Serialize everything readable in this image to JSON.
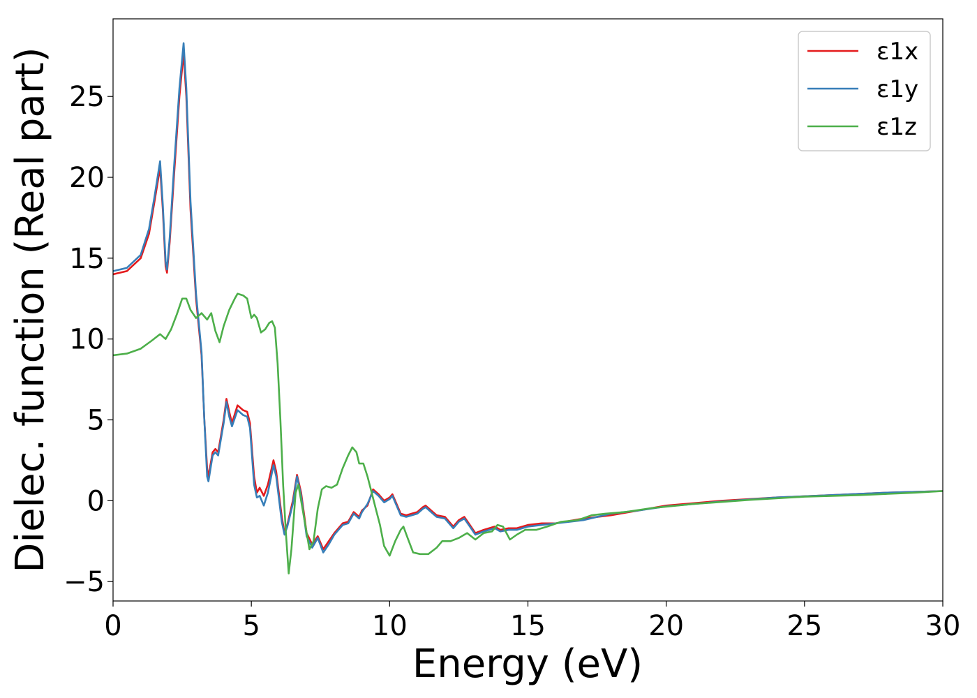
{
  "chart_data": {
    "type": "line",
    "title": "",
    "xlabel": "Energy (eV)",
    "ylabel": "Dielec. function (Real part)",
    "xlim": [
      0,
      30
    ],
    "ylim": [
      -6.2,
      29.8
    ],
    "x_ticks": [
      0,
      5,
      10,
      15,
      20,
      25,
      30
    ],
    "y_ticks": [
      -5,
      0,
      5,
      10,
      15,
      20,
      25
    ],
    "x_tick_labels": [
      "0",
      "5",
      "10",
      "15",
      "20",
      "25",
      "30"
    ],
    "y_tick_labels": [
      "−5",
      "0",
      "5",
      "10",
      "15",
      "20",
      "25"
    ],
    "grid": false,
    "legend": {
      "position": "top-right"
    },
    "series": [
      {
        "name": "ε1x",
        "color": "#e41a1c",
        "points": [
          [
            0,
            14.0
          ],
          [
            0.5,
            14.2
          ],
          [
            1.0,
            15.0
          ],
          [
            1.3,
            16.5
          ],
          [
            1.5,
            18.5
          ],
          [
            1.7,
            20.6
          ],
          [
            1.8,
            18.0
          ],
          [
            1.9,
            14.5
          ],
          [
            1.95,
            14.1
          ],
          [
            2.05,
            16.0
          ],
          [
            2.2,
            20.0
          ],
          [
            2.4,
            25.0
          ],
          [
            2.55,
            27.7
          ],
          [
            2.65,
            25.0
          ],
          [
            2.8,
            18.0
          ],
          [
            3.0,
            12.5
          ],
          [
            3.2,
            9.0
          ],
          [
            3.3,
            5.0
          ],
          [
            3.4,
            2.0
          ],
          [
            3.45,
            1.5
          ],
          [
            3.6,
            3.0
          ],
          [
            3.7,
            3.2
          ],
          [
            3.8,
            3.0
          ],
          [
            4.0,
            5.0
          ],
          [
            4.1,
            6.3
          ],
          [
            4.2,
            5.5
          ],
          [
            4.3,
            4.8
          ],
          [
            4.5,
            5.9
          ],
          [
            4.7,
            5.6
          ],
          [
            4.85,
            5.5
          ],
          [
            4.95,
            4.8
          ],
          [
            5.1,
            1.5
          ],
          [
            5.2,
            0.5
          ],
          [
            5.3,
            0.8
          ],
          [
            5.45,
            0.3
          ],
          [
            5.6,
            1.0
          ],
          [
            5.8,
            2.5
          ],
          [
            5.9,
            1.8
          ],
          [
            6.1,
            -1.0
          ],
          [
            6.2,
            -2.0
          ],
          [
            6.3,
            -1.5
          ],
          [
            6.5,
            0.0
          ],
          [
            6.65,
            1.6
          ],
          [
            6.8,
            0.5
          ],
          [
            7.0,
            -2.0
          ],
          [
            7.2,
            -2.7
          ],
          [
            7.4,
            -2.2
          ],
          [
            7.6,
            -3.0
          ],
          [
            7.8,
            -2.5
          ],
          [
            8.0,
            -2.0
          ],
          [
            8.3,
            -1.4
          ],
          [
            8.5,
            -1.3
          ],
          [
            8.7,
            -0.7
          ],
          [
            8.9,
            -1.0
          ],
          [
            9.0,
            -0.6
          ],
          [
            9.2,
            -0.3
          ],
          [
            9.4,
            0.7
          ],
          [
            9.6,
            0.4
          ],
          [
            9.8,
            0.0
          ],
          [
            10.0,
            0.2
          ],
          [
            10.1,
            0.4
          ],
          [
            10.2,
            0.0
          ],
          [
            10.4,
            -0.8
          ],
          [
            10.6,
            -0.9
          ],
          [
            10.8,
            -0.8
          ],
          [
            11.0,
            -0.7
          ],
          [
            11.2,
            -0.4
          ],
          [
            11.3,
            -0.3
          ],
          [
            11.5,
            -0.6
          ],
          [
            11.7,
            -0.9
          ],
          [
            12.0,
            -1.0
          ],
          [
            12.3,
            -1.6
          ],
          [
            12.5,
            -1.2
          ],
          [
            12.7,
            -1.0
          ],
          [
            12.9,
            -1.5
          ],
          [
            13.1,
            -2.0
          ],
          [
            13.4,
            -1.8
          ],
          [
            13.6,
            -1.7
          ],
          [
            13.8,
            -1.6
          ],
          [
            14.0,
            -1.8
          ],
          [
            14.3,
            -1.7
          ],
          [
            14.6,
            -1.7
          ],
          [
            15.0,
            -1.5
          ],
          [
            15.5,
            -1.4
          ],
          [
            16.0,
            -1.4
          ],
          [
            17.0,
            -1.1
          ],
          [
            18.0,
            -0.9
          ],
          [
            19.0,
            -0.6
          ],
          [
            20.0,
            -0.3
          ],
          [
            22.0,
            0.0
          ],
          [
            24.0,
            0.2
          ],
          [
            26.0,
            0.35
          ],
          [
            28.0,
            0.5
          ],
          [
            30.0,
            0.6
          ]
        ]
      },
      {
        "name": "ε1y",
        "color": "#377eb8",
        "points": [
          [
            0,
            14.2
          ],
          [
            0.5,
            14.4
          ],
          [
            1.0,
            15.2
          ],
          [
            1.3,
            16.8
          ],
          [
            1.5,
            18.8
          ],
          [
            1.7,
            21.0
          ],
          [
            1.8,
            18.3
          ],
          [
            1.9,
            14.8
          ],
          [
            1.95,
            14.3
          ],
          [
            2.05,
            16.3
          ],
          [
            2.2,
            20.5
          ],
          [
            2.4,
            25.5
          ],
          [
            2.55,
            28.3
          ],
          [
            2.65,
            25.5
          ],
          [
            2.8,
            18.5
          ],
          [
            3.0,
            12.8
          ],
          [
            3.2,
            9.2
          ],
          [
            3.3,
            5.0
          ],
          [
            3.4,
            1.5
          ],
          [
            3.45,
            1.2
          ],
          [
            3.6,
            2.8
          ],
          [
            3.7,
            3.0
          ],
          [
            3.8,
            2.8
          ],
          [
            4.0,
            4.8
          ],
          [
            4.1,
            6.1
          ],
          [
            4.2,
            5.2
          ],
          [
            4.3,
            4.6
          ],
          [
            4.5,
            5.6
          ],
          [
            4.7,
            5.3
          ],
          [
            4.85,
            5.2
          ],
          [
            4.95,
            4.5
          ],
          [
            5.1,
            1.0
          ],
          [
            5.2,
            0.2
          ],
          [
            5.3,
            0.3
          ],
          [
            5.45,
            -0.3
          ],
          [
            5.6,
            0.5
          ],
          [
            5.8,
            2.2
          ],
          [
            5.9,
            1.5
          ],
          [
            6.1,
            -1.3
          ],
          [
            6.2,
            -2.1
          ],
          [
            6.3,
            -1.6
          ],
          [
            6.5,
            -0.2
          ],
          [
            6.65,
            1.5
          ],
          [
            6.8,
            0.3
          ],
          [
            7.0,
            -2.2
          ],
          [
            7.2,
            -2.9
          ],
          [
            7.4,
            -2.3
          ],
          [
            7.6,
            -3.2
          ],
          [
            7.8,
            -2.7
          ],
          [
            8.0,
            -2.1
          ],
          [
            8.3,
            -1.5
          ],
          [
            8.5,
            -1.4
          ],
          [
            8.7,
            -0.8
          ],
          [
            8.9,
            -1.1
          ],
          [
            9.0,
            -0.7
          ],
          [
            9.2,
            -0.2
          ],
          [
            9.4,
            0.6
          ],
          [
            9.6,
            0.3
          ],
          [
            9.8,
            -0.1
          ],
          [
            10.0,
            0.1
          ],
          [
            10.1,
            0.3
          ],
          [
            10.2,
            -0.1
          ],
          [
            10.4,
            -0.9
          ],
          [
            10.6,
            -1.0
          ],
          [
            10.8,
            -0.9
          ],
          [
            11.0,
            -0.8
          ],
          [
            11.2,
            -0.5
          ],
          [
            11.3,
            -0.4
          ],
          [
            11.5,
            -0.7
          ],
          [
            11.7,
            -1.0
          ],
          [
            12.0,
            -1.1
          ],
          [
            12.3,
            -1.7
          ],
          [
            12.5,
            -1.3
          ],
          [
            12.7,
            -1.1
          ],
          [
            12.9,
            -1.6
          ],
          [
            13.1,
            -2.1
          ],
          [
            13.4,
            -1.9
          ],
          [
            13.6,
            -1.8
          ],
          [
            13.8,
            -1.7
          ],
          [
            14.0,
            -1.9
          ],
          [
            14.3,
            -1.8
          ],
          [
            14.6,
            -1.8
          ],
          [
            15.0,
            -1.6
          ],
          [
            15.5,
            -1.5
          ],
          [
            16.0,
            -1.4
          ],
          [
            17.0,
            -1.2
          ],
          [
            18.0,
            -0.8
          ],
          [
            19.0,
            -0.6
          ],
          [
            20.0,
            -0.35
          ],
          [
            22.0,
            -0.05
          ],
          [
            24.0,
            0.2
          ],
          [
            26.0,
            0.35
          ],
          [
            28.0,
            0.5
          ],
          [
            30.0,
            0.6
          ]
        ]
      },
      {
        "name": "ε1z",
        "color": "#4daf4a",
        "points": [
          [
            0,
            9.0
          ],
          [
            0.5,
            9.1
          ],
          [
            1.0,
            9.4
          ],
          [
            1.4,
            9.9
          ],
          [
            1.7,
            10.3
          ],
          [
            1.9,
            10.0
          ],
          [
            2.1,
            10.6
          ],
          [
            2.3,
            11.5
          ],
          [
            2.5,
            12.5
          ],
          [
            2.65,
            12.5
          ],
          [
            2.8,
            11.8
          ],
          [
            3.0,
            11.3
          ],
          [
            3.2,
            11.6
          ],
          [
            3.4,
            11.2
          ],
          [
            3.55,
            11.6
          ],
          [
            3.7,
            10.5
          ],
          [
            3.85,
            9.8
          ],
          [
            4.0,
            10.8
          ],
          [
            4.2,
            11.8
          ],
          [
            4.4,
            12.5
          ],
          [
            4.5,
            12.8
          ],
          [
            4.7,
            12.7
          ],
          [
            4.85,
            12.5
          ],
          [
            5.0,
            11.3
          ],
          [
            5.1,
            11.5
          ],
          [
            5.2,
            11.3
          ],
          [
            5.35,
            10.4
          ],
          [
            5.5,
            10.6
          ],
          [
            5.65,
            11.0
          ],
          [
            5.75,
            11.1
          ],
          [
            5.85,
            10.7
          ],
          [
            5.95,
            8.5
          ],
          [
            6.05,
            5.0
          ],
          [
            6.15,
            1.0
          ],
          [
            6.25,
            -2.0
          ],
          [
            6.35,
            -4.5
          ],
          [
            6.45,
            -3.0
          ],
          [
            6.6,
            0.5
          ],
          [
            6.7,
            1.0
          ],
          [
            6.8,
            0.0
          ],
          [
            6.95,
            -1.5
          ],
          [
            7.1,
            -3.0
          ],
          [
            7.25,
            -2.5
          ],
          [
            7.4,
            -0.5
          ],
          [
            7.55,
            0.7
          ],
          [
            7.7,
            0.9
          ],
          [
            7.9,
            0.8
          ],
          [
            8.1,
            1.0
          ],
          [
            8.3,
            2.0
          ],
          [
            8.5,
            2.8
          ],
          [
            8.65,
            3.3
          ],
          [
            8.8,
            3.0
          ],
          [
            8.9,
            2.3
          ],
          [
            9.05,
            2.3
          ],
          [
            9.2,
            1.5
          ],
          [
            9.35,
            0.5
          ],
          [
            9.5,
            -0.5
          ],
          [
            9.65,
            -1.5
          ],
          [
            9.8,
            -2.8
          ],
          [
            10.0,
            -3.4
          ],
          [
            10.2,
            -2.5
          ],
          [
            10.4,
            -1.8
          ],
          [
            10.5,
            -1.6
          ],
          [
            10.65,
            -2.3
          ],
          [
            10.85,
            -3.2
          ],
          [
            11.1,
            -3.3
          ],
          [
            11.4,
            -3.3
          ],
          [
            11.7,
            -2.9
          ],
          [
            11.9,
            -2.5
          ],
          [
            12.2,
            -2.5
          ],
          [
            12.5,
            -2.3
          ],
          [
            12.8,
            -2.0
          ],
          [
            13.1,
            -2.4
          ],
          [
            13.4,
            -2.0
          ],
          [
            13.7,
            -1.9
          ],
          [
            13.9,
            -1.5
          ],
          [
            14.1,
            -1.6
          ],
          [
            14.35,
            -2.4
          ],
          [
            14.6,
            -2.1
          ],
          [
            14.9,
            -1.8
          ],
          [
            15.3,
            -1.8
          ],
          [
            15.7,
            -1.6
          ],
          [
            16.2,
            -1.3
          ],
          [
            16.8,
            -1.2
          ],
          [
            17.3,
            -0.9
          ],
          [
            17.8,
            -0.8
          ],
          [
            18.5,
            -0.7
          ],
          [
            19.5,
            -0.45
          ],
          [
            21.0,
            -0.2
          ],
          [
            23.0,
            0.05
          ],
          [
            25.0,
            0.25
          ],
          [
            27.0,
            0.35
          ],
          [
            29.0,
            0.5
          ],
          [
            30.0,
            0.6
          ]
        ]
      }
    ]
  }
}
